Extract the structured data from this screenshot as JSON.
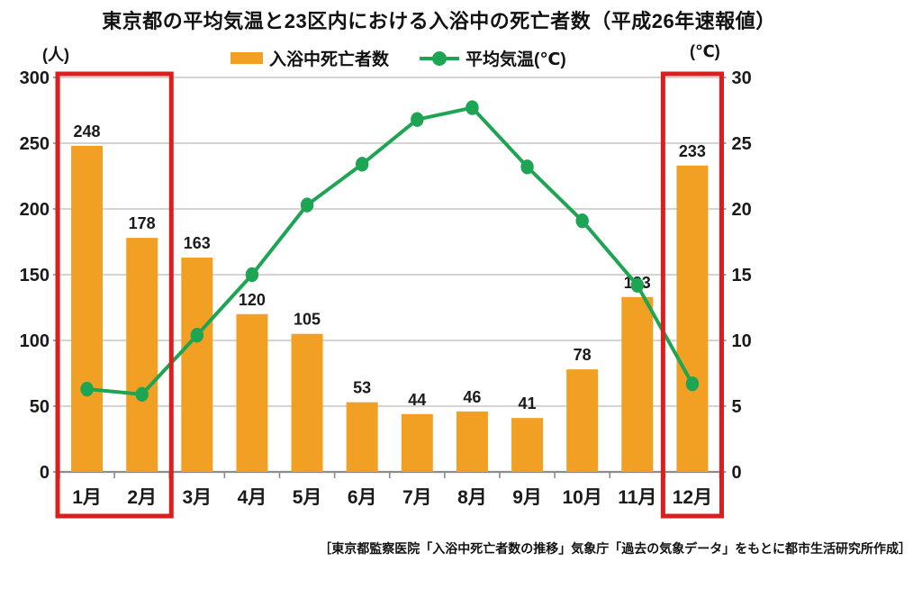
{
  "title": "東京都の平均気温と23区内における入浴中の死亡者数（平成26年速報値）",
  "axes": {
    "left_unit": "(人)",
    "right_unit": "(℃)",
    "left_ticks": [
      0,
      50,
      100,
      150,
      200,
      250,
      300
    ],
    "right_ticks": [
      0,
      5,
      10,
      15,
      20,
      25,
      30
    ]
  },
  "source": "［東京都監察医院「入浴中死亡者数の推移」気象庁「過去の気象データ」をもとに都市生活研究所作成］",
  "chart_data": {
    "type": "bar+line",
    "title": "東京都の平均気温と23区内における入浴中の死亡者数（平成26年速報値）",
    "categories": [
      "1月",
      "2月",
      "3月",
      "4月",
      "5月",
      "6月",
      "7月",
      "8月",
      "9月",
      "10月",
      "11月",
      "12月"
    ],
    "series": [
      {
        "name": "入浴中死亡者数",
        "type": "bar",
        "axis": "left",
        "values": [
          248,
          178,
          163,
          120,
          105,
          53,
          44,
          46,
          41,
          78,
          133,
          233
        ],
        "color": "#F2A024"
      },
      {
        "name": "平均気温(℃)",
        "type": "line",
        "axis": "right",
        "values": [
          6.3,
          5.9,
          10.4,
          15.0,
          20.3,
          23.4,
          26.8,
          27.7,
          23.2,
          19.1,
          14.2,
          6.7
        ],
        "color": "#1DA553"
      }
    ],
    "left_ylabel": "(人)",
    "right_ylabel": "(℃)",
    "left_ylim": [
      0,
      300
    ],
    "right_ylim": [
      0,
      30
    ],
    "grid": true,
    "legend_position": "top",
    "value_labels_on_bars": true,
    "highlight_color": "#DB1F1F",
    "highlight_boxes": [
      {
        "start_month": "1月",
        "end_month": "2月"
      },
      {
        "start_month": "12月",
        "end_month": "12月"
      }
    ]
  }
}
